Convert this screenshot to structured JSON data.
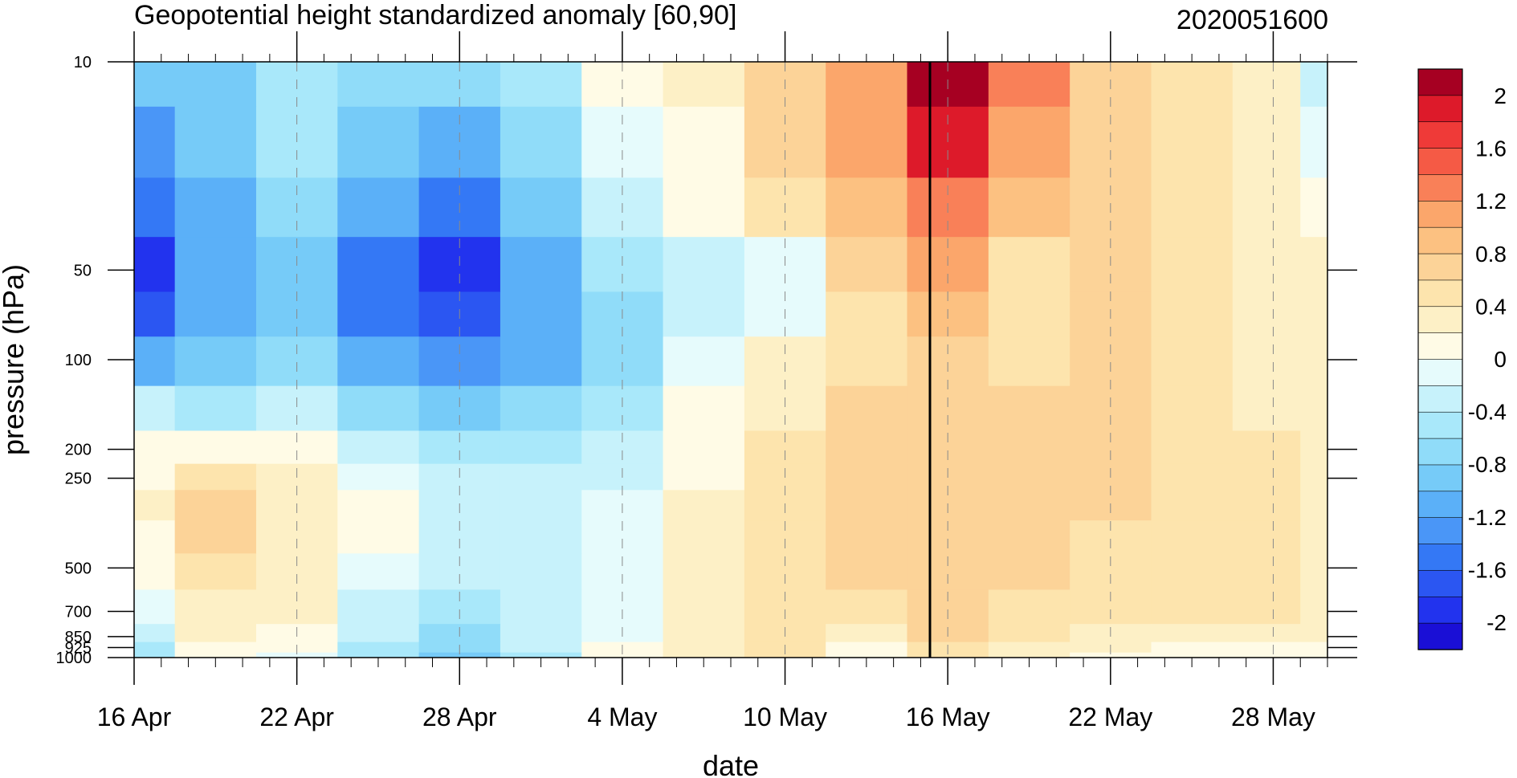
{
  "chart_data": {
    "type": "heatmap",
    "title": "Geopotential height standardized anomaly [60,90]",
    "timestamp": "2020051600",
    "xlabel": "date",
    "ylabel": "pressure (hPa)",
    "x_ticks": [
      "16 Apr",
      "22 Apr",
      "28 Apr",
      "4 May",
      "10 May",
      "16 May",
      "22 May",
      "28 May"
    ],
    "y_ticks": [
      "10",
      "50",
      "100",
      "200",
      "250",
      "500",
      "700",
      "850",
      "925",
      "1000"
    ],
    "y_scale": "log",
    "ylim": [
      1000,
      10
    ],
    "xlim": [
      "16 Apr",
      "30 May"
    ],
    "colorbar": {
      "labels": [
        "2",
        "1.6",
        "1.2",
        "0.8",
        "0.4",
        "0",
        "-0.4",
        "-0.8",
        "-1.2",
        "-1.6",
        "-2"
      ],
      "levels": [
        -2.2,
        -2.0,
        -1.8,
        -1.6,
        -1.4,
        -1.2,
        -1.0,
        -0.8,
        -0.6,
        -0.4,
        -0.2,
        0,
        0.2,
        0.4,
        0.6,
        0.8,
        1.0,
        1.2,
        1.4,
        1.6,
        1.8,
        2.0,
        2.2
      ],
      "colors": [
        "#1a0fd6",
        "#2233ee",
        "#2b56f2",
        "#3478f5",
        "#4a96f7",
        "#5bb0f8",
        "#76cbf8",
        "#90dcf9",
        "#a9e8fa",
        "#c7f2fb",
        "#e6fbfc",
        "#fffbe6",
        "#fdf0c6",
        "#fde4ad",
        "#fcd398",
        "#fcc181",
        "#fba66b",
        "#f98058",
        "#f55a45",
        "#ef3a38",
        "#dd1a2a",
        "#a60022"
      ]
    },
    "current_date_line": "16 May",
    "grid": "dashed-vertical",
    "grid_values_description": "anomaly field by date (columns) and pressure level (rows)",
    "x": [
      "16 Apr",
      "19 Apr",
      "22 Apr",
      "25 Apr",
      "28 Apr",
      "1 May",
      "4 May",
      "7 May",
      "10 May",
      "13 May",
      "16 May",
      "19 May",
      "22 May",
      "25 May",
      "28 May",
      "30 May"
    ],
    "y": [
      10,
      20,
      30,
      50,
      70,
      100,
      150,
      200,
      250,
      300,
      400,
      500,
      700,
      850,
      925,
      1000
    ],
    "z": [
      [
        -1.0,
        -0.9,
        -0.6,
        -0.7,
        -0.8,
        -0.5,
        0.1,
        0.3,
        0.6,
        1.0,
        2.0,
        1.3,
        0.6,
        0.5,
        0.2,
        -0.4
      ],
      [
        -1.4,
        -1.0,
        -0.6,
        -0.9,
        -1.1,
        -0.7,
        -0.2,
        0.1,
        0.6,
        1.0,
        1.8,
        1.1,
        0.6,
        0.5,
        0.2,
        -0.1
      ],
      [
        -1.6,
        -1.1,
        -0.7,
        -1.2,
        -1.5,
        -0.9,
        -0.4,
        0.0,
        0.5,
        0.9,
        1.3,
        0.8,
        0.7,
        0.5,
        0.3,
        0.0
      ],
      [
        -1.9,
        -1.2,
        -0.9,
        -1.5,
        -1.9,
        -1.1,
        -0.6,
        -0.3,
        -0.1,
        0.6,
        1.0,
        0.5,
        0.7,
        0.5,
        0.3,
        0.2
      ],
      [
        -1.7,
        -1.2,
        -1.0,
        -1.5,
        -1.8,
        -1.2,
        -0.8,
        -0.4,
        -0.1,
        0.5,
        0.8,
        0.4,
        0.6,
        0.5,
        0.3,
        0.2
      ],
      [
        -1.1,
        -1.0,
        -0.8,
        -1.2,
        -1.4,
        -1.1,
        -0.7,
        -0.2,
        0.2,
        0.5,
        0.7,
        0.4,
        0.6,
        0.5,
        0.3,
        0.2
      ],
      [
        -0.4,
        -0.5,
        -0.4,
        -0.8,
        -0.9,
        -0.7,
        -0.5,
        0.0,
        0.3,
        0.6,
        0.7,
        0.6,
        0.6,
        0.5,
        0.3,
        0.2
      ],
      [
        0.0,
        0.1,
        0.0,
        -0.4,
        -0.6,
        -0.5,
        -0.4,
        0.0,
        0.4,
        0.6,
        0.7,
        0.6,
        0.6,
        0.5,
        0.4,
        0.3
      ],
      [
        0.1,
        0.4,
        0.2,
        -0.2,
        -0.4,
        -0.4,
        -0.3,
        0.1,
        0.4,
        0.6,
        0.6,
        0.6,
        0.6,
        0.5,
        0.4,
        0.3
      ],
      [
        0.2,
        0.6,
        0.3,
        0.0,
        -0.3,
        -0.4,
        -0.2,
        0.2,
        0.5,
        0.6,
        0.6,
        0.6,
        0.6,
        0.5,
        0.5,
        0.3
      ],
      [
        0.1,
        0.6,
        0.3,
        0.0,
        -0.3,
        -0.3,
        -0.2,
        0.2,
        0.5,
        0.6,
        0.6,
        0.6,
        0.5,
        0.5,
        0.5,
        0.3
      ],
      [
        0.0,
        0.5,
        0.3,
        -0.1,
        -0.4,
        -0.3,
        -0.2,
        0.2,
        0.5,
        0.6,
        0.6,
        0.6,
        0.5,
        0.4,
        0.5,
        0.3
      ],
      [
        -0.2,
        0.3,
        0.2,
        -0.3,
        -0.5,
        -0.3,
        -0.2,
        0.3,
        0.5,
        0.5,
        0.6,
        0.5,
        0.4,
        0.4,
        0.4,
        0.3
      ],
      [
        -0.4,
        0.2,
        0.1,
        -0.4,
        -0.7,
        -0.4,
        -0.1,
        0.3,
        0.5,
        0.2,
        0.6,
        0.4,
        0.3,
        0.2,
        0.2,
        0.2
      ],
      [
        -0.5,
        0.1,
        0.0,
        -0.5,
        -0.8,
        -0.4,
        0.0,
        0.3,
        0.5,
        0.1,
        0.5,
        0.3,
        0.2,
        0.1,
        0.1,
        0.1
      ],
      [
        -0.6,
        0.0,
        -0.1,
        -0.6,
        -0.9,
        -0.5,
        0.0,
        0.3,
        0.4,
        0.0,
        0.4,
        0.2,
        0.1,
        0.0,
        0.0,
        0.0
      ]
    ]
  }
}
